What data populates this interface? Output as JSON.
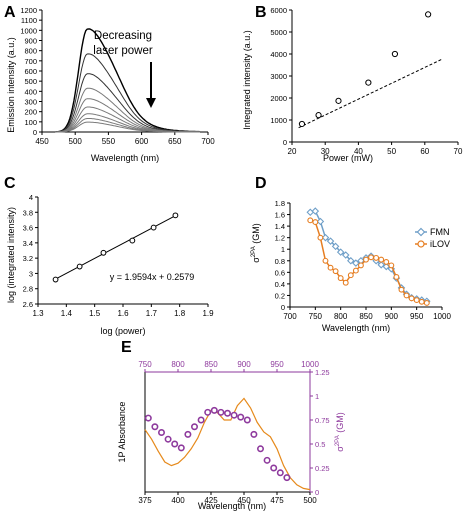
{
  "chart_data": [
    {
      "panel": "A",
      "type": "line",
      "xlabel": "Wavelength (nm)",
      "ylabel": "Emission intensity (a.u.)",
      "annotation": "Decreasing laser power",
      "xlim": [
        450,
        700
      ],
      "ylim": [
        0,
        1200
      ],
      "xticks": [
        450,
        500,
        550,
        600,
        650,
        700
      ],
      "yticks": [
        0,
        100,
        200,
        300,
        400,
        500,
        600,
        700,
        800,
        900,
        1000,
        1100,
        1200
      ],
      "peak_wavelength": 518,
      "peaks": [
        990,
        750,
        560,
        420,
        320,
        240,
        175,
        130,
        95
      ]
    },
    {
      "panel": "B",
      "type": "scatter",
      "xlabel": "Power (mW)",
      "ylabel": "Integrated intensity (a.u.)",
      "xlim": [
        20,
        70
      ],
      "ylim": [
        0,
        6000
      ],
      "xticks": [
        20,
        30,
        40,
        50,
        60,
        70
      ],
      "yticks": [
        0,
        1000,
        2000,
        3000,
        4000,
        5000,
        6000
      ],
      "x": [
        23,
        28,
        34,
        43,
        51,
        61
      ],
      "y": [
        820,
        1220,
        1870,
        2700,
        4000,
        5800
      ],
      "fit": {
        "x": [
          22,
          65
        ],
        "y": [
          650,
          3750
        ]
      }
    },
    {
      "panel": "C",
      "type": "scatter",
      "xlabel": "log (power)",
      "ylabel": "log (integrated intensity)",
      "equation": "y = 1.9594x + 0.2579",
      "xlim": [
        1.3,
        1.9
      ],
      "ylim": [
        2.6,
        4
      ],
      "xticks": [
        "1.3",
        "1.4",
        "1.5",
        "1.6",
        "1.7",
        "1.8",
        "1.9"
      ],
      "yticks": [
        "2.6",
        "2.8",
        "3",
        "3.2",
        "3.4",
        "3.6",
        "3.8",
        "4"
      ],
      "x": [
        1.362,
        1.447,
        1.531,
        1.633,
        1.708,
        1.785
      ],
      "y": [
        2.92,
        3.09,
        3.27,
        3.43,
        3.6,
        3.76
      ],
      "fit": {
        "x": [
          1.362,
          1.785
        ],
        "y": [
          2.927,
          3.755
        ]
      }
    },
    {
      "panel": "D",
      "type": "line",
      "xlabel": "Wavelength (nm)",
      "ylabel": "σ2PA (GM)",
      "xlim": [
        700,
        1000
      ],
      "ylim": [
        0,
        1.8
      ],
      "xticks": [
        700,
        750,
        800,
        850,
        900,
        950,
        1000
      ],
      "yticks": [
        "0",
        "0.2",
        "0.4",
        "0.6",
        "0.8",
        "1",
        "1.2",
        "1.4",
        "1.6",
        "1.8"
      ],
      "legend": "right",
      "series": [
        {
          "name": "FMN",
          "color": "#6f9fc8",
          "x": [
            740,
            750,
            760,
            770,
            780,
            790,
            800,
            810,
            820,
            830,
            840,
            850,
            860,
            870,
            880,
            890,
            900,
            910,
            920,
            930,
            940,
            950,
            960,
            970
          ],
          "y": [
            1.64,
            1.66,
            1.48,
            1.2,
            1.14,
            1.05,
            0.95,
            0.9,
            0.8,
            0.76,
            0.8,
            0.85,
            0.88,
            0.8,
            0.73,
            0.7,
            0.66,
            0.5,
            0.33,
            0.22,
            0.16,
            0.14,
            0.12,
            0.1
          ]
        },
        {
          "name": "iLOV",
          "color": "#e67e22",
          "x": [
            740,
            750,
            760,
            770,
            780,
            790,
            800,
            810,
            820,
            830,
            840,
            850,
            860,
            870,
            880,
            890,
            900,
            910,
            920,
            930,
            940,
            950,
            960,
            970
          ],
          "y": [
            1.5,
            1.47,
            1.2,
            0.8,
            0.68,
            0.62,
            0.5,
            0.42,
            0.55,
            0.63,
            0.72,
            0.82,
            0.86,
            0.85,
            0.82,
            0.78,
            0.72,
            0.52,
            0.3,
            0.2,
            0.15,
            0.12,
            0.09,
            0.07
          ]
        }
      ]
    },
    {
      "panel": "E",
      "type": "line",
      "xlabel": "Wavelength (nm)",
      "ylabel_left": "1P Absorbance",
      "ylabel_right": "σ2PA (GM)",
      "xlim": [
        375,
        500
      ],
      "x2lim": [
        750,
        1000
      ],
      "ylim_right": [
        0,
        1.25
      ],
      "xticks": [
        375,
        400,
        425,
        450,
        475,
        500
      ],
      "x2ticks": [
        750,
        800,
        850,
        900,
        950,
        1000
      ],
      "yticks_right": [
        "0",
        "0.25",
        "0.5",
        "0.75",
        "1",
        "1.25"
      ],
      "x2_color": "#8e3a9d",
      "absorbance": {
        "color": "#e68a1c",
        "x": [
          375,
          380,
          385,
          390,
          395,
          400,
          405,
          410,
          415,
          420,
          425,
          430,
          435,
          440,
          445,
          450,
          455,
          460,
          465,
          470,
          475,
          480,
          485,
          490,
          495,
          500
        ],
        "y": [
          0.52,
          0.44,
          0.34,
          0.25,
          0.22,
          0.24,
          0.29,
          0.36,
          0.45,
          0.58,
          0.68,
          0.66,
          0.6,
          0.6,
          0.72,
          0.78,
          0.7,
          0.58,
          0.5,
          0.46,
          0.36,
          0.22,
          0.12,
          0.06,
          0.03,
          0.02
        ]
      },
      "tpa": {
        "color": "#8e3a9d",
        "x": [
          755,
          765,
          775,
          785,
          795,
          805,
          815,
          825,
          835,
          845,
          855,
          865,
          875,
          885,
          895,
          905,
          915,
          925,
          935,
          945,
          955,
          965
        ],
        "y": [
          0.77,
          0.68,
          0.62,
          0.55,
          0.5,
          0.46,
          0.6,
          0.68,
          0.75,
          0.83,
          0.85,
          0.83,
          0.82,
          0.8,
          0.78,
          0.75,
          0.6,
          0.45,
          0.33,
          0.25,
          0.2,
          0.15
        ]
      }
    }
  ],
  "labels": {
    "A": "A",
    "B": "B",
    "C": "C",
    "D": "D",
    "E": "E",
    "a_ylabel": "Emission intensity (a.u.)",
    "a_xlabel": "Wavelength (nm)",
    "a_annot_1": "Decreasing",
    "a_annot_2": "laser power",
    "b_ylabel": "Integrated intensity (a.u.)",
    "b_xlabel": "Power (mW)",
    "c_ylabel": "log (integrated intensity)",
    "c_xlabel": "log (power)",
    "c_equation": "y = 1.9594x + 0.2579",
    "d_xlabel": "Wavelength (nm)",
    "d_ylabel_main": "σ",
    "d_ylabel_sup": "2PA",
    "d_ylabel_unit": " (GM)",
    "d_legend_fmn": "FMN",
    "d_legend_ilov": "iLOV",
    "e_xlabel": "Wavelength (nm)",
    "e_ylabel_left": "1P Absorbance",
    "e_ylabel_right_main": "σ",
    "e_ylabel_right_sup": "2PA",
    "e_ylabel_right_unit": " (GM)"
  }
}
